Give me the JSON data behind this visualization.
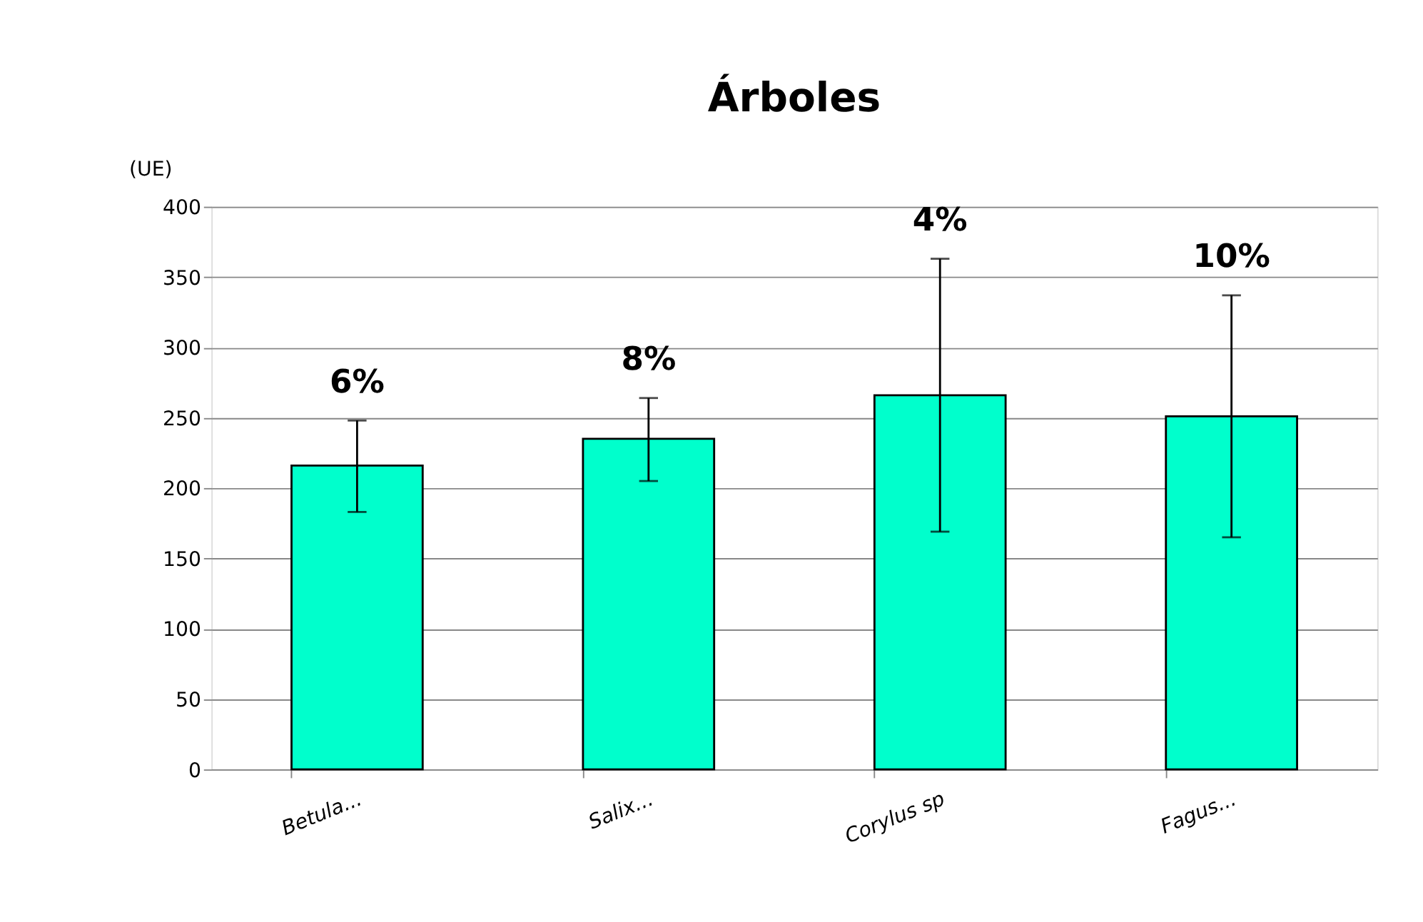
{
  "chart_data": {
    "type": "bar",
    "title": "Árboles",
    "ylabel": "(UE)",
    "categories": [
      "Betula...",
      "Salix...",
      "Corylus sp",
      "Fagus..."
    ],
    "values": [
      216,
      235,
      266,
      251
    ],
    "errors": [
      [
        183,
        248
      ],
      [
        205,
        264
      ],
      [
        169,
        363
      ],
      [
        165,
        337
      ]
    ],
    "color": "#00ffcc",
    "annotations": [
      {
        "text": "6%",
        "x": "Betula...",
        "y": 248
      },
      {
        "text": "8%",
        "x": "Salix...",
        "y": 264
      },
      {
        "text": "4%",
        "x": "Corylus sp",
        "y": 363
      },
      {
        "text": "10%",
        "x": "Fagus...",
        "y": 337
      }
    ],
    "ylim": [
      0,
      400
    ],
    "yticks": [
      0,
      50,
      100,
      150,
      200,
      250,
      300,
      350,
      400
    ],
    "grid": "y"
  }
}
